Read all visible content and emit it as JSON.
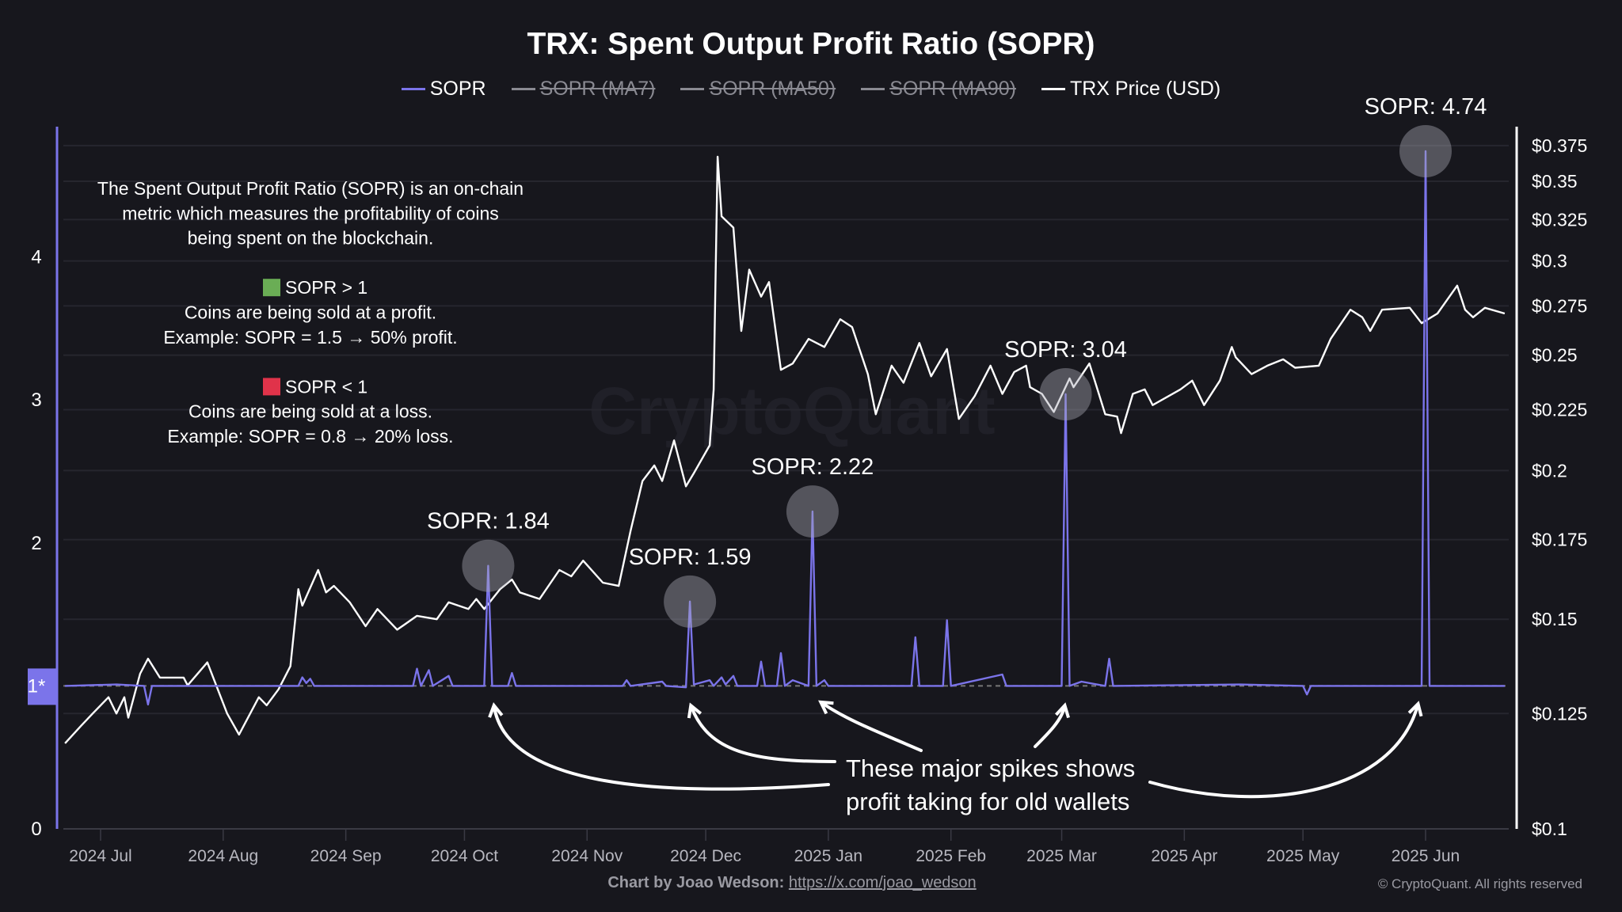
{
  "title": "TRX: Spent Output Profit Ratio (SOPR)",
  "legend": [
    {
      "label": "SOPR",
      "color": "#7b74ea",
      "active": true
    },
    {
      "label": "SOPR (MA7)",
      "color": "#8a8a92",
      "active": false
    },
    {
      "label": "SOPR (MA50)",
      "color": "#8a8a92",
      "active": false
    },
    {
      "label": "SOPR (MA90)",
      "color": "#8a8a92",
      "active": false
    },
    {
      "label": "TRX Price (USD)",
      "color": "#ffffff",
      "active": true
    }
  ],
  "info_box": {
    "intro": [
      "The Spent Output Profit Ratio (SOPR) is an on-chain",
      "metric which measures the profitability of coins",
      "being spent on the blockchain."
    ],
    "profit": {
      "swatch_color": "#6aad55",
      "heading": "SOPR > 1",
      "lines": [
        "Coins are being sold at a profit.",
        "Example: SOPR = 1.5 → 50% profit."
      ]
    },
    "loss": {
      "swatch_color": "#e0334a",
      "heading": "SOPR < 1",
      "lines": [
        "Coins are being sold at a loss.",
        "Example: SOPR = 0.8 → 20% loss."
      ]
    }
  },
  "note": [
    "These major spikes shows",
    "profit taking for old wallets"
  ],
  "footer": {
    "credit_label": "Chart by Joao Wedson:",
    "credit_link": "https://x.com/joao_wedson",
    "copyright": "© CryptoQuant. All rights reserved"
  },
  "chart_data": {
    "type": "line",
    "title": "TRX: Spent Output Profit Ratio (SOPR)",
    "watermark": "CryptoQuant",
    "grid": true,
    "legend_position": "top",
    "x_ticks": [
      {
        "date": "2024-07-01",
        "label": "2024 Jul"
      },
      {
        "date": "2024-08-01",
        "label": "2024 Aug"
      },
      {
        "date": "2024-09-01",
        "label": "2024 Sep"
      },
      {
        "date": "2024-10-01",
        "label": "2024 Oct"
      },
      {
        "date": "2024-11-01",
        "label": "2024 Nov"
      },
      {
        "date": "2024-12-01",
        "label": "2024 Dec"
      },
      {
        "date": "2025-01-01",
        "label": "2025 Jan"
      },
      {
        "date": "2025-02-01",
        "label": "2025 Feb"
      },
      {
        "date": "2025-03-01",
        "label": "2025 Mar"
      },
      {
        "date": "2025-04-01",
        "label": "2025 Apr"
      },
      {
        "date": "2025-05-01",
        "label": "2025 May"
      },
      {
        "date": "2025-06-01",
        "label": "2025 Jun"
      }
    ],
    "y_left": {
      "range": [
        0,
        4.8
      ],
      "reference_line": 1,
      "ticks": [
        {
          "value": 0,
          "label": "0"
        },
        {
          "value": 1,
          "label": "1*"
        },
        {
          "value": 2,
          "label": "2"
        },
        {
          "value": 3,
          "label": "3"
        },
        {
          "value": 4,
          "label": "4"
        }
      ],
      "highlight_color": "#7b74ea"
    },
    "y_right": {
      "scale": "log",
      "range": [
        0.1,
        0.38
      ],
      "ticks": [
        {
          "value": 0.1,
          "label": "$0.1"
        },
        {
          "value": 0.125,
          "label": "$0.125"
        },
        {
          "value": 0.15,
          "label": "$0.15"
        },
        {
          "value": 0.175,
          "label": "$0.175"
        },
        {
          "value": 0.2,
          "label": "$0.2"
        },
        {
          "value": 0.225,
          "label": "$0.225"
        },
        {
          "value": 0.25,
          "label": "$0.25"
        },
        {
          "value": 0.275,
          "label": "$0.275"
        },
        {
          "value": 0.3,
          "label": "$0.3"
        },
        {
          "value": 0.325,
          "label": "$0.325"
        },
        {
          "value": 0.35,
          "label": "$0.35"
        },
        {
          "value": 0.375,
          "label": "$0.375"
        }
      ]
    },
    "series": [
      {
        "name": "TRX Price (USD)",
        "axis": "right",
        "color": "#ffffff",
        "points": [
          [
            "2024-06-22",
            0.118
          ],
          [
            "2024-06-26",
            0.122
          ],
          [
            "2024-06-29",
            0.125
          ],
          [
            "2024-07-03",
            0.129
          ],
          [
            "2024-07-05",
            0.125
          ],
          [
            "2024-07-07",
            0.129
          ],
          [
            "2024-07-08",
            0.124
          ],
          [
            "2024-07-11",
            0.135
          ],
          [
            "2024-07-13",
            0.139
          ],
          [
            "2024-07-16",
            0.134
          ],
          [
            "2024-07-22",
            0.134
          ],
          [
            "2024-07-23",
            0.132
          ],
          [
            "2024-07-28",
            0.138
          ],
          [
            "2024-08-02",
            0.125
          ],
          [
            "2024-08-05",
            0.12
          ],
          [
            "2024-08-10",
            0.129
          ],
          [
            "2024-08-12",
            0.127
          ],
          [
            "2024-08-15",
            0.131
          ],
          [
            "2024-08-18",
            0.137
          ],
          [
            "2024-08-20",
            0.159
          ],
          [
            "2024-08-21",
            0.154
          ],
          [
            "2024-08-25",
            0.165
          ],
          [
            "2024-08-27",
            0.158
          ],
          [
            "2024-08-29",
            0.16
          ],
          [
            "2024-09-02",
            0.155
          ],
          [
            "2024-09-06",
            0.148
          ],
          [
            "2024-09-09",
            0.153
          ],
          [
            "2024-09-14",
            0.147
          ],
          [
            "2024-09-19",
            0.151
          ],
          [
            "2024-09-24",
            0.15
          ],
          [
            "2024-09-27",
            0.155
          ],
          [
            "2024-10-02",
            0.153
          ],
          [
            "2024-10-04",
            0.156
          ],
          [
            "2024-10-06",
            0.153
          ],
          [
            "2024-10-10",
            0.159
          ],
          [
            "2024-10-13",
            0.162
          ],
          [
            "2024-10-15",
            0.158
          ],
          [
            "2024-10-20",
            0.156
          ],
          [
            "2024-10-25",
            0.165
          ],
          [
            "2024-10-28",
            0.163
          ],
          [
            "2024-10-31",
            0.168
          ],
          [
            "2024-11-05",
            0.161
          ],
          [
            "2024-11-09",
            0.16
          ],
          [
            "2024-11-12",
            0.178
          ],
          [
            "2024-11-15",
            0.196
          ],
          [
            "2024-11-18",
            0.202
          ],
          [
            "2024-11-20",
            0.196
          ],
          [
            "2024-11-23",
            0.212
          ],
          [
            "2024-11-26",
            0.194
          ],
          [
            "2024-11-28",
            0.199
          ],
          [
            "2024-12-02",
            0.21
          ],
          [
            "2024-12-03",
            0.234
          ],
          [
            "2024-12-04",
            0.367
          ],
          [
            "2024-12-05",
            0.327
          ],
          [
            "2024-12-08",
            0.32
          ],
          [
            "2024-12-10",
            0.262
          ],
          [
            "2024-12-12",
            0.295
          ],
          [
            "2024-12-15",
            0.28
          ],
          [
            "2024-12-17",
            0.288
          ],
          [
            "2024-12-20",
            0.243
          ],
          [
            "2024-12-23",
            0.246
          ],
          [
            "2024-12-27",
            0.258
          ],
          [
            "2024-12-31",
            0.254
          ],
          [
            "2025-01-04",
            0.268
          ],
          [
            "2025-01-07",
            0.264
          ],
          [
            "2025-01-11",
            0.241
          ],
          [
            "2025-01-13",
            0.223
          ],
          [
            "2025-01-17",
            0.245
          ],
          [
            "2025-01-20",
            0.237
          ],
          [
            "2025-01-24",
            0.256
          ],
          [
            "2025-01-27",
            0.24
          ],
          [
            "2025-01-31",
            0.253
          ],
          [
            "2025-02-03",
            0.221
          ],
          [
            "2025-02-07",
            0.231
          ],
          [
            "2025-02-11",
            0.245
          ],
          [
            "2025-02-14",
            0.232
          ],
          [
            "2025-02-17",
            0.242
          ],
          [
            "2025-02-20",
            0.245
          ],
          [
            "2025-02-21",
            0.235
          ],
          [
            "2025-02-24",
            0.232
          ],
          [
            "2025-02-27",
            0.224
          ],
          [
            "2025-03-03",
            0.239
          ],
          [
            "2025-03-04",
            0.235
          ],
          [
            "2025-03-08",
            0.246
          ],
          [
            "2025-03-12",
            0.223
          ],
          [
            "2025-03-15",
            0.222
          ],
          [
            "2025-03-16",
            0.215
          ],
          [
            "2025-03-19",
            0.232
          ],
          [
            "2025-03-22",
            0.234
          ],
          [
            "2025-03-24",
            0.227
          ],
          [
            "2025-03-31",
            0.234
          ],
          [
            "2025-04-03",
            0.238
          ],
          [
            "2025-04-06",
            0.227
          ],
          [
            "2025-04-10",
            0.238
          ],
          [
            "2025-04-13",
            0.254
          ],
          [
            "2025-04-14",
            0.249
          ],
          [
            "2025-04-18",
            0.241
          ],
          [
            "2025-04-22",
            0.245
          ],
          [
            "2025-04-26",
            0.248
          ],
          [
            "2025-04-29",
            0.244
          ],
          [
            "2025-05-05",
            0.245
          ],
          [
            "2025-05-08",
            0.258
          ],
          [
            "2025-05-13",
            0.273
          ],
          [
            "2025-05-16",
            0.269
          ],
          [
            "2025-05-18",
            0.262
          ],
          [
            "2025-05-21",
            0.273
          ],
          [
            "2025-05-28",
            0.274
          ],
          [
            "2025-05-31",
            0.266
          ],
          [
            "2025-06-04",
            0.271
          ],
          [
            "2025-06-09",
            0.286
          ],
          [
            "2025-06-11",
            0.273
          ],
          [
            "2025-06-13",
            0.269
          ],
          [
            "2025-06-16",
            0.274
          ],
          [
            "2025-06-21",
            0.271
          ]
        ]
      },
      {
        "name": "SOPR",
        "axis": "left",
        "color": "#7b74ea",
        "points": [
          [
            "2024-06-22",
            1.0
          ],
          [
            "2024-07-05",
            1.01
          ],
          [
            "2024-07-12",
            1.0
          ],
          [
            "2024-07-13",
            0.87
          ],
          [
            "2024-07-14",
            1.0
          ],
          [
            "2024-08-01",
            1.0
          ],
          [
            "2024-08-20",
            1.0
          ],
          [
            "2024-08-21",
            1.06
          ],
          [
            "2024-08-22",
            1.02
          ],
          [
            "2024-08-23",
            1.05
          ],
          [
            "2024-08-24",
            1.0
          ],
          [
            "2024-09-18",
            1.0
          ],
          [
            "2024-09-19",
            1.12
          ],
          [
            "2024-09-20",
            1.0
          ],
          [
            "2024-09-22",
            1.11
          ],
          [
            "2024-09-23",
            1.0
          ],
          [
            "2024-09-27",
            1.07
          ],
          [
            "2024-09-28",
            1.0
          ],
          [
            "2024-10-06",
            1.0
          ],
          [
            "2024-10-07",
            1.84
          ],
          [
            "2024-10-08",
            1.0
          ],
          [
            "2024-10-12",
            1.0
          ],
          [
            "2024-10-13",
            1.09
          ],
          [
            "2024-10-14",
            1.0
          ],
          [
            "2024-11-10",
            1.0
          ],
          [
            "2024-11-11",
            1.04
          ],
          [
            "2024-11-12",
            1.0
          ],
          [
            "2024-11-20",
            1.03
          ],
          [
            "2024-11-21",
            1.0
          ],
          [
            "2024-11-26",
            0.99
          ],
          [
            "2024-11-27",
            1.59
          ],
          [
            "2024-11-28",
            1.01
          ],
          [
            "2024-12-02",
            1.04
          ],
          [
            "2024-12-03",
            1.0
          ],
          [
            "2024-12-05",
            1.06
          ],
          [
            "2024-12-06",
            1.01
          ],
          [
            "2024-12-08",
            1.07
          ],
          [
            "2024-12-09",
            1.0
          ],
          [
            "2024-12-14",
            1.0
          ],
          [
            "2024-12-15",
            1.17
          ],
          [
            "2024-12-16",
            1.0
          ],
          [
            "2024-12-19",
            1.0
          ],
          [
            "2024-12-20",
            1.23
          ],
          [
            "2024-12-21",
            1.0
          ],
          [
            "2024-12-23",
            1.04
          ],
          [
            "2024-12-26",
            1.01
          ],
          [
            "2024-12-27",
            1.0
          ],
          [
            "2024-12-28",
            2.22
          ],
          [
            "2024-12-29",
            1.0
          ],
          [
            "2024-12-31",
            1.04
          ],
          [
            "2025-01-01",
            1.0
          ],
          [
            "2025-01-22",
            1.0
          ],
          [
            "2025-01-23",
            1.34
          ],
          [
            "2025-01-24",
            1.0
          ],
          [
            "2025-01-30",
            1.0
          ],
          [
            "2025-01-31",
            1.46
          ],
          [
            "2025-02-01",
            1.0
          ],
          [
            "2025-02-14",
            1.08
          ],
          [
            "2025-02-15",
            1.0
          ],
          [
            "2025-03-01",
            1.0
          ],
          [
            "2025-03-02",
            3.04
          ],
          [
            "2025-03-03",
            1.0
          ],
          [
            "2025-03-06",
            1.03
          ],
          [
            "2025-03-12",
            1.0
          ],
          [
            "2025-03-13",
            1.19
          ],
          [
            "2025-03-14",
            1.0
          ],
          [
            "2025-04-15",
            1.01
          ],
          [
            "2025-05-01",
            1.0
          ],
          [
            "2025-05-02",
            0.94
          ],
          [
            "2025-05-03",
            1.0
          ],
          [
            "2025-05-31",
            1.0
          ],
          [
            "2025-06-01",
            4.74
          ],
          [
            "2025-06-02",
            1.0
          ],
          [
            "2025-06-21",
            1.0
          ]
        ]
      }
    ],
    "annotations": [
      {
        "label": "SOPR: 1.84",
        "date": "2024-10-07",
        "value": 1.84
      },
      {
        "label": "SOPR: 1.59",
        "date": "2024-11-27",
        "value": 1.59
      },
      {
        "label": "SOPR: 2.22",
        "date": "2024-12-28",
        "value": 2.22
      },
      {
        "label": "SOPR: 3.04",
        "date": "2025-03-02",
        "value": 3.04
      },
      {
        "label": "SOPR: 4.74",
        "date": "2025-06-01",
        "value": 4.74
      }
    ]
  }
}
